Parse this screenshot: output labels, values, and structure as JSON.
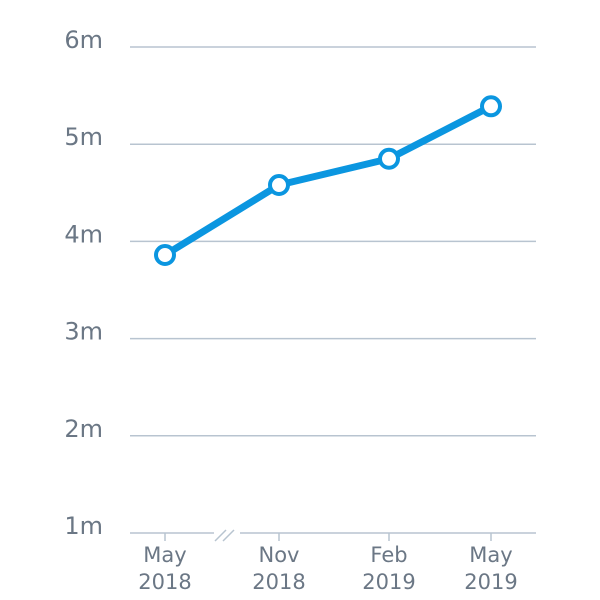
{
  "chart_data": {
    "type": "line",
    "categories": [
      [
        "May",
        "2018"
      ],
      [
        "Nov",
        "2018"
      ],
      [
        "Feb",
        "2019"
      ],
      [
        "May",
        "2019"
      ]
    ],
    "series": [
      {
        "color": "#0b96e0",
        "values": [
          3860000,
          4580000,
          4850000,
          5390000
        ]
      }
    ],
    "ylim": [
      1000000,
      6000000
    ],
    "yticks": [
      {
        "value": 1000000,
        "label": "1m"
      },
      {
        "value": 2000000,
        "label": "2m"
      },
      {
        "value": 3000000,
        "label": "3m"
      },
      {
        "value": 4000000,
        "label": "4m"
      },
      {
        "value": 5000000,
        "label": "5m"
      },
      {
        "value": 6000000,
        "label": "6m"
      }
    ],
    "grid": true
  }
}
